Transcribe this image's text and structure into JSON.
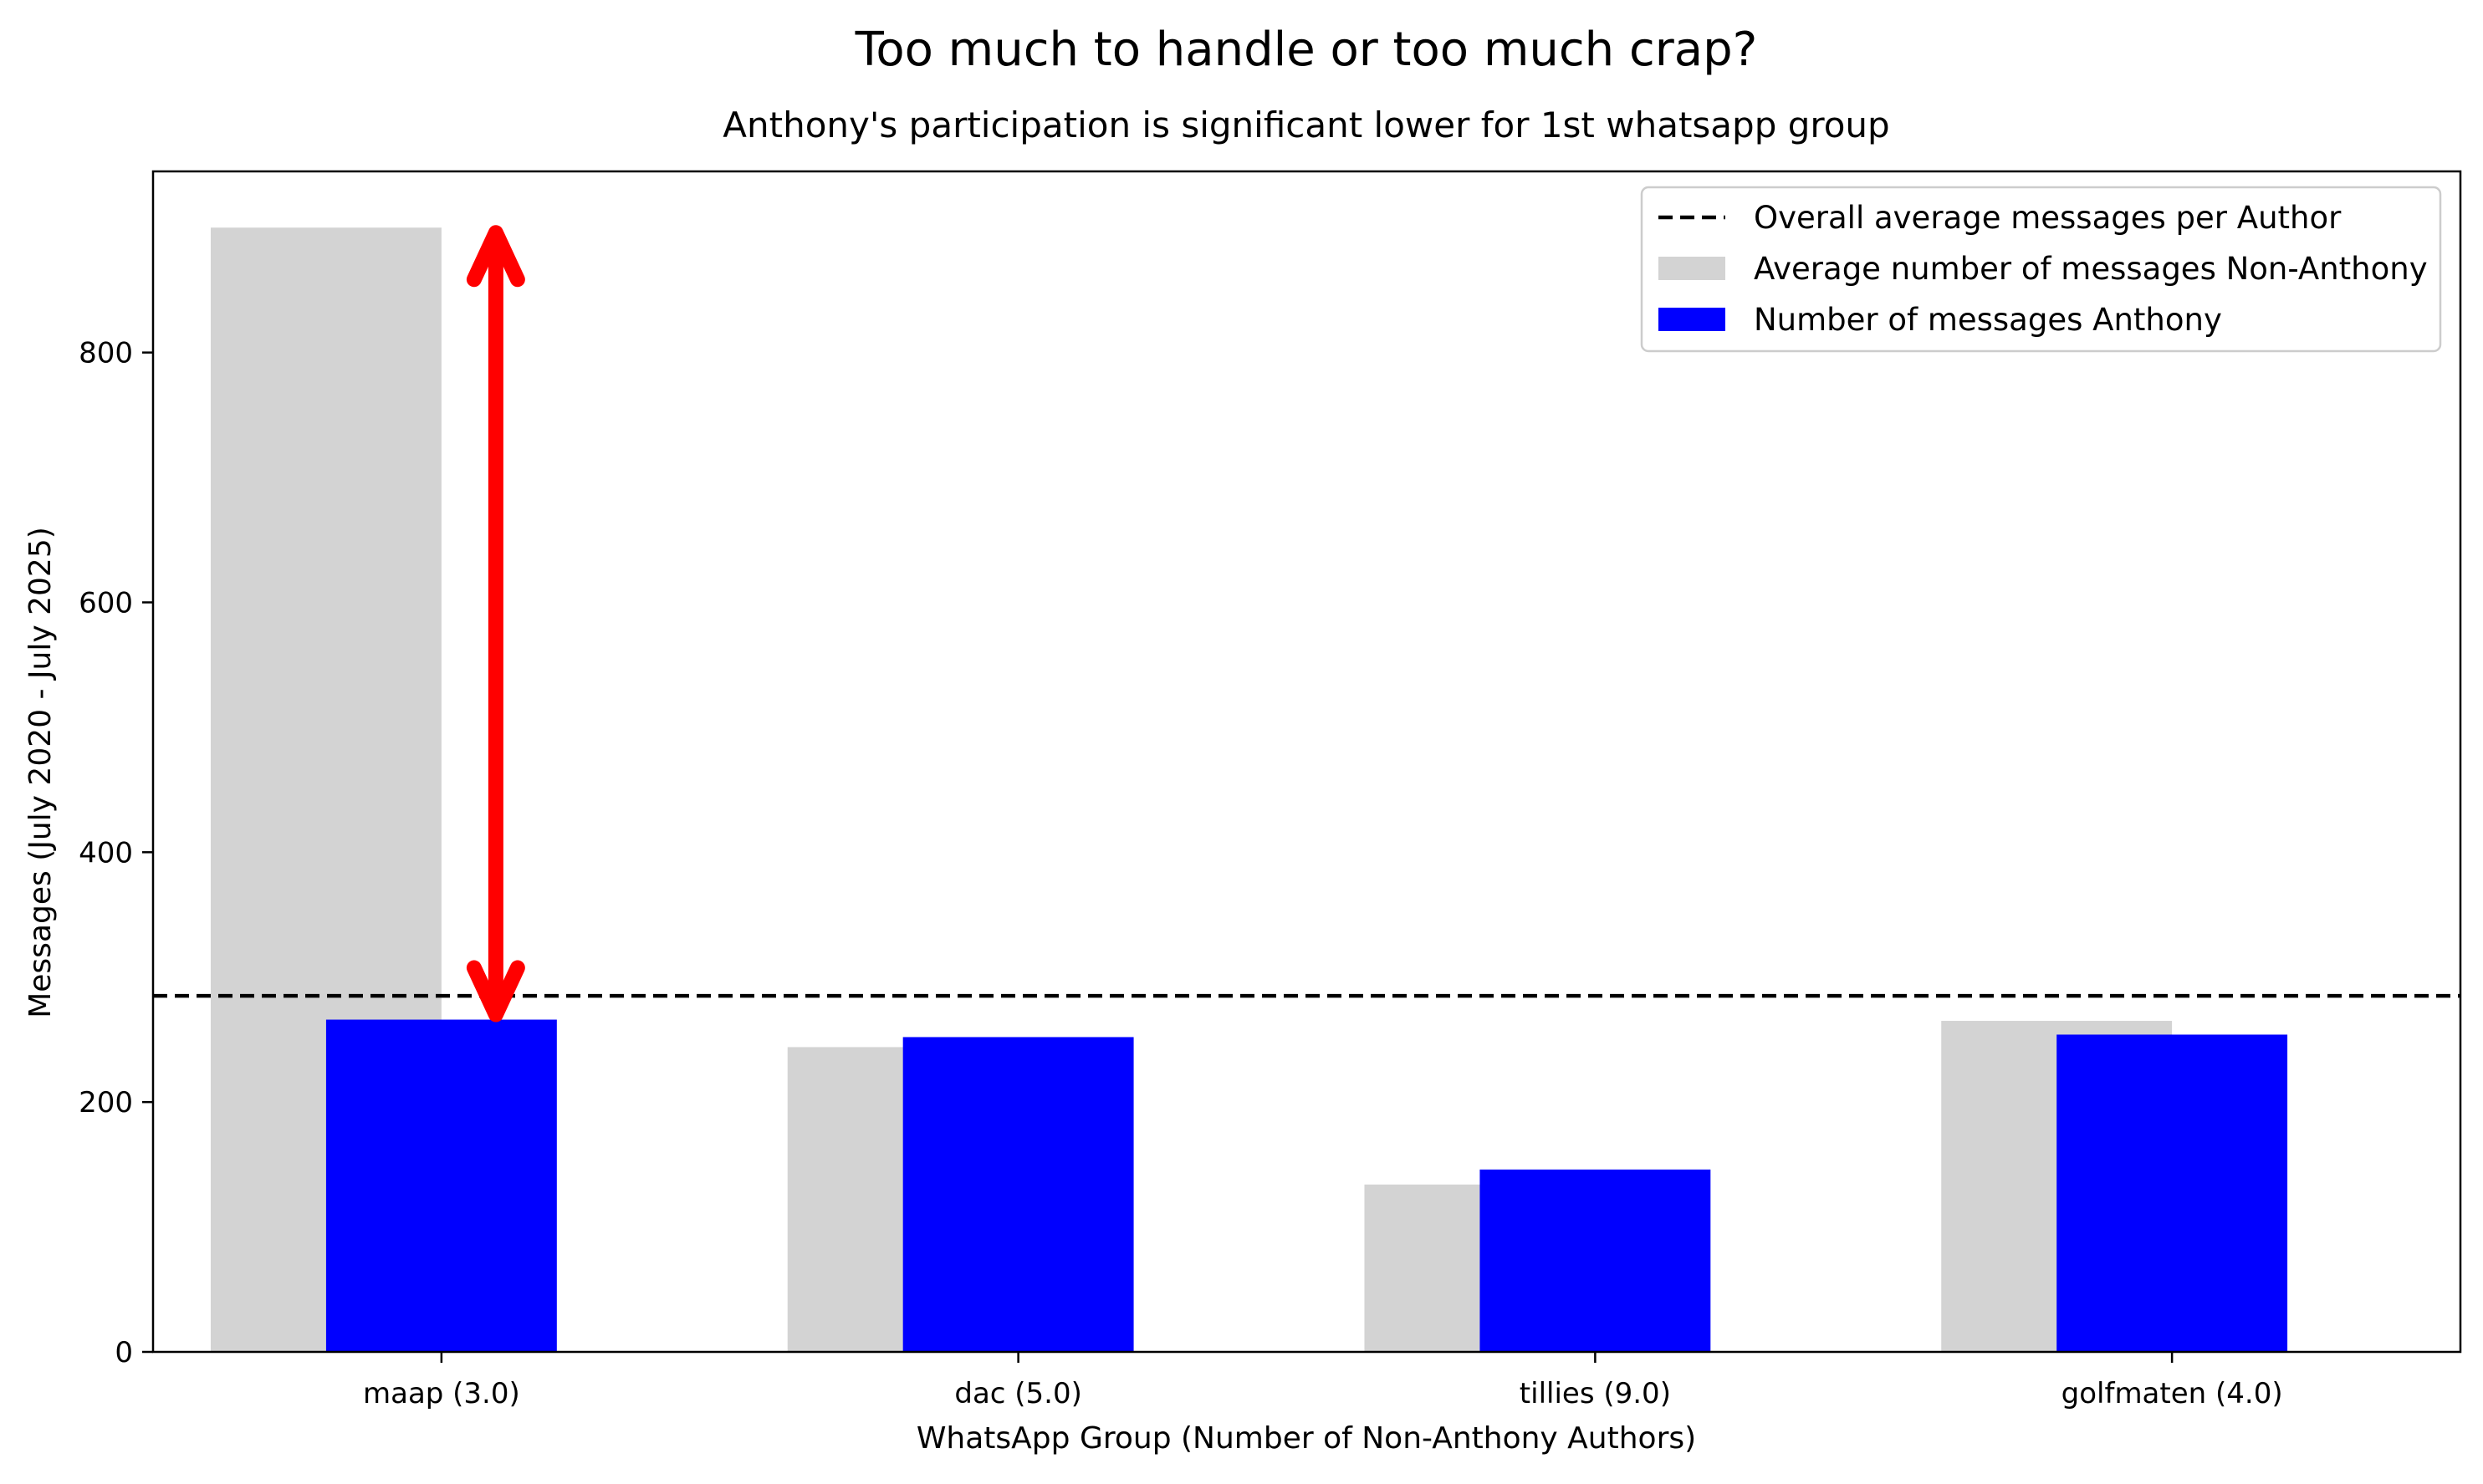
{
  "chart_data": {
    "type": "bar",
    "title": "Too much to handle or too much crap?",
    "subtitle": "Anthony's participation is significant lower for 1st whatsapp group",
    "xlabel": "WhatsApp Group (Number of Non-Anthony Authors)",
    "ylabel": "Messages (July 2020 - July 2025)",
    "categories": [
      "maap (3.0)",
      "dac (5.0)",
      "tillies (9.0)",
      "golfmaten (4.0)"
    ],
    "series": [
      {
        "name": "Average number of messages Non-Anthony",
        "values": [
          900,
          244,
          134,
          265
        ],
        "color": "#d3d3d3"
      },
      {
        "name": "Number of messages Anthony",
        "values": [
          266,
          252,
          146,
          254
        ],
        "color": "#0000ff"
      }
    ],
    "reference_line": {
      "name": "Overall average messages per Author",
      "value": 285,
      "style": "dashed",
      "color": "#000000"
    },
    "annotation": {
      "type": "double-arrow",
      "category": "maap (3.0)",
      "from": 900,
      "to": 266,
      "color": "#ff0000"
    },
    "ylim": [
      0,
      945
    ],
    "yticks": [
      0,
      200,
      400,
      600,
      800
    ],
    "legend_position": "upper right",
    "grid": false
  }
}
